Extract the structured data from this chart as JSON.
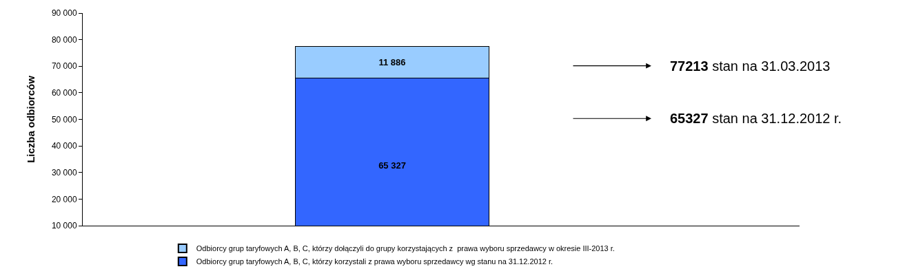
{
  "chart_data": {
    "type": "bar",
    "stacked": true,
    "ylabel": "Liczba odbiorców",
    "categories": [
      null
    ],
    "series": [
      {
        "name": "Odbiorcy grup taryfowych A, B, C, którzy korzystali z prawa wyboru sprzedawcy wg stanu na 31.12.2012 r.",
        "color": "#3366ff",
        "values": [
          65327
        ],
        "value_labels": [
          "65 327"
        ]
      },
      {
        "name": "Odbiorcy grup taryfowych A, B, C, którzy dołączyli do grupy korzystających z  prawa wyboru sprzedawcy w okresie III-2013 r.",
        "color": "#99ccff",
        "values": [
          11886
        ],
        "value_labels": [
          "11 886"
        ]
      }
    ],
    "ylim": [
      10000,
      90000
    ],
    "yticks": [
      {
        "value": 10000,
        "label": "10 000"
      },
      {
        "value": 20000,
        "label": "20 000"
      },
      {
        "value": 30000,
        "label": "30 000"
      },
      {
        "value": 40000,
        "label": "40 000"
      },
      {
        "value": 50000,
        "label": "50 000"
      },
      {
        "value": 60000,
        "label": "60 000"
      },
      {
        "value": 70000,
        "label": "70 000"
      },
      {
        "value": 80000,
        "label": "80 000"
      },
      {
        "value": 90000,
        "label": "90 000"
      }
    ],
    "annotations": [
      "77213 stan na 31.03.2013",
      "65327 stan na 31.12.2012 r."
    ],
    "legend": "bottom"
  }
}
